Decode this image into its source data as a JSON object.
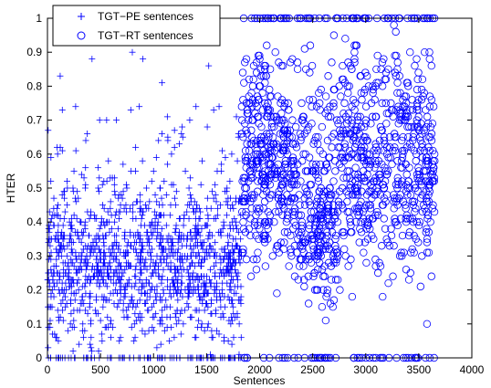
{
  "chart_data": {
    "type": "scatter",
    "xlabel": "Sentences",
    "ylabel": "HTER",
    "xlim": [
      0,
      4000
    ],
    "ylim": [
      0,
      1
    ],
    "xticks": [
      0,
      500,
      1000,
      1500,
      2000,
      2500,
      3000,
      3500,
      4000
    ],
    "yticks": [
      0,
      0.1,
      0.2,
      0.3,
      0.4,
      0.5,
      0.6,
      0.7,
      0.8,
      0.9,
      1
    ],
    "grid": false,
    "legend_position": "top-left",
    "series": [
      {
        "name": "TGT−PE sentences",
        "marker": "plus",
        "color": "#0000ff",
        "x_range": [
          1,
          1830
        ],
        "y_distribution": "mostly 0.05-0.5, centered near 0.28; sparse outliers up to 0.9; many at 0",
        "sample_points": [
          [
            10,
            0.0
          ],
          [
            50,
            0.42
          ],
          [
            90,
            0.62
          ],
          [
            120,
            0.83
          ],
          [
            140,
            0.73
          ],
          [
            200,
            0.25
          ],
          [
            250,
            0.55
          ],
          [
            300,
            0.35
          ],
          [
            420,
            0.88
          ],
          [
            520,
            0.45
          ],
          [
            650,
            0.7
          ],
          [
            800,
            0.9
          ],
          [
            900,
            0.88
          ],
          [
            1000,
            0.55
          ],
          [
            1080,
            0.81
          ],
          [
            1270,
            0.68
          ],
          [
            1400,
            0.74
          ],
          [
            1520,
            0.86
          ],
          [
            1600,
            0.55
          ],
          [
            1700,
            0.45
          ],
          [
            1790,
            0.58
          ]
        ]
      },
      {
        "name": "TGT−RT sentences",
        "marker": "circle",
        "color": "#0000ff",
        "x_range": [
          1830,
          3650
        ],
        "y_distribution": "spread 0.1-1.0, mostly 0.3-0.9, cluster near 0.35 around x=2400-2700; many at 0 and 1",
        "sample_points": [
          [
            1850,
            1.0
          ],
          [
            1900,
            0.75
          ],
          [
            2000,
            0.6
          ],
          [
            2100,
            0.85
          ],
          [
            2200,
            0.55
          ],
          [
            2300,
            0.3
          ],
          [
            2400,
            0.4
          ],
          [
            2500,
            0.35
          ],
          [
            2600,
            0.2
          ],
          [
            2700,
            0.95
          ],
          [
            2800,
            0.75
          ],
          [
            2900,
            0.5
          ],
          [
            3000,
            0.7
          ],
          [
            3100,
            0.85
          ],
          [
            3200,
            0.6
          ],
          [
            3300,
            0.45
          ],
          [
            3400,
            0.8
          ],
          [
            3500,
            0.55
          ],
          [
            3600,
            0.9
          ]
        ]
      }
    ]
  }
}
